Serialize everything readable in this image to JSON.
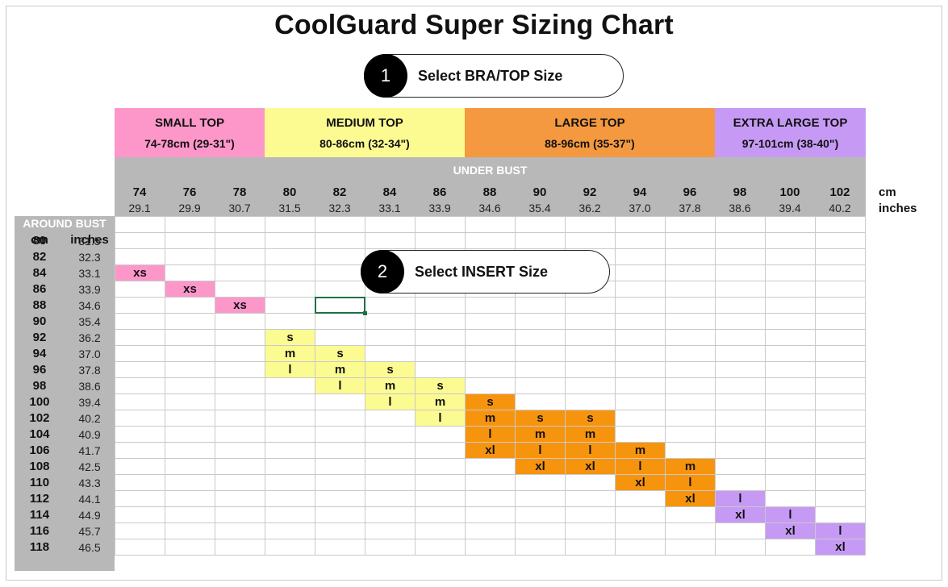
{
  "title": "CoolGuard Super Sizing Chart",
  "steps": [
    {
      "number": "1",
      "label": "Select BRA/TOP Size"
    },
    {
      "number": "2",
      "label": "Select INSERT Size"
    }
  ],
  "top_groups": [
    {
      "name": "SMALL TOP",
      "range": "74-78cm (29-31\")",
      "color": "#fd97c9",
      "span": 3
    },
    {
      "name": "MEDIUM TOP",
      "range": "80-86cm (32-34\")",
      "color": "#fbfb92",
      "span": 4
    },
    {
      "name": "LARGE TOP",
      "range": "88-96cm (35-37\")",
      "color": "#f49940",
      "span": 5
    },
    {
      "name": "EXTRA LARGE TOP",
      "range": "97-101cm (38-40\")",
      "color": "#c69af4",
      "span": 3
    }
  ],
  "under_bust": {
    "label": "UNDER BUST",
    "unit_cm": "cm",
    "unit_in": "inches",
    "cm": [
      "74",
      "76",
      "78",
      "80",
      "82",
      "84",
      "86",
      "88",
      "90",
      "92",
      "94",
      "96",
      "98",
      "100",
      "102"
    ],
    "inches": [
      "29.1",
      "29.9",
      "30.7",
      "31.5",
      "32.3",
      "33.1",
      "33.9",
      "34.6",
      "35.4",
      "36.2",
      "37.0",
      "37.8",
      "38.6",
      "39.4",
      "40.2"
    ]
  },
  "around_bust": {
    "label": "AROUND BUST",
    "cm_header": "cm",
    "in_header": "inches",
    "cm": [
      "80",
      "82",
      "84",
      "86",
      "88",
      "90",
      "92",
      "94",
      "96",
      "98",
      "100",
      "102",
      "104",
      "106",
      "108",
      "110",
      "112",
      "114",
      "116",
      "118"
    ],
    "inches": [
      "31.5",
      "32.3",
      "33.1",
      "33.9",
      "34.6",
      "35.4",
      "36.2",
      "37.0",
      "37.8",
      "38.6",
      "39.4",
      "40.2",
      "40.9",
      "41.7",
      "42.5",
      "43.3",
      "44.1",
      "44.9",
      "45.7",
      "46.5"
    ]
  },
  "cell_colors": {
    "pink": "#fd97c9",
    "yellow": "#fbfb92",
    "orange": "#f7940e",
    "purple": "#c69af4"
  },
  "size_cells": [
    {
      "row": 2,
      "col": 0,
      "text": "xs",
      "color": "pink"
    },
    {
      "row": 3,
      "col": 1,
      "text": "xs",
      "color": "pink"
    },
    {
      "row": 4,
      "col": 2,
      "text": "xs",
      "color": "pink"
    },
    {
      "row": 6,
      "col": 3,
      "text": "s",
      "color": "yellow"
    },
    {
      "row": 7,
      "col": 3,
      "text": "m",
      "color": "yellow"
    },
    {
      "row": 8,
      "col": 3,
      "text": "l",
      "color": "yellow"
    },
    {
      "row": 7,
      "col": 4,
      "text": "s",
      "color": "yellow"
    },
    {
      "row": 8,
      "col": 4,
      "text": "m",
      "color": "yellow"
    },
    {
      "row": 9,
      "col": 4,
      "text": "l",
      "color": "yellow"
    },
    {
      "row": 8,
      "col": 5,
      "text": "s",
      "color": "yellow"
    },
    {
      "row": 9,
      "col": 5,
      "text": "m",
      "color": "yellow"
    },
    {
      "row": 10,
      "col": 5,
      "text": "l",
      "color": "yellow"
    },
    {
      "row": 9,
      "col": 6,
      "text": "s",
      "color": "yellow"
    },
    {
      "row": 10,
      "col": 6,
      "text": "m",
      "color": "yellow"
    },
    {
      "row": 11,
      "col": 6,
      "text": "l",
      "color": "yellow"
    },
    {
      "row": 10,
      "col": 7,
      "text": "s",
      "color": "orange"
    },
    {
      "row": 11,
      "col": 7,
      "text": "m",
      "color": "orange"
    },
    {
      "row": 12,
      "col": 7,
      "text": "l",
      "color": "orange"
    },
    {
      "row": 13,
      "col": 7,
      "text": "xl",
      "color": "orange"
    },
    {
      "row": 11,
      "col": 8,
      "text": "s",
      "color": "orange"
    },
    {
      "row": 12,
      "col": 8,
      "text": "m",
      "color": "orange"
    },
    {
      "row": 13,
      "col": 8,
      "text": "l",
      "color": "orange"
    },
    {
      "row": 14,
      "col": 8,
      "text": "xl",
      "color": "orange"
    },
    {
      "row": 11,
      "col": 9,
      "text": "s",
      "color": "orange"
    },
    {
      "row": 12,
      "col": 9,
      "text": "m",
      "color": "orange"
    },
    {
      "row": 13,
      "col": 9,
      "text": "l",
      "color": "orange"
    },
    {
      "row": 14,
      "col": 9,
      "text": "xl",
      "color": "orange"
    },
    {
      "row": 13,
      "col": 10,
      "text": "m",
      "color": "orange"
    },
    {
      "row": 14,
      "col": 10,
      "text": "l",
      "color": "orange"
    },
    {
      "row": 15,
      "col": 10,
      "text": "xl",
      "color": "orange"
    },
    {
      "row": 14,
      "col": 11,
      "text": "m",
      "color": "orange"
    },
    {
      "row": 15,
      "col": 11,
      "text": "l",
      "color": "orange"
    },
    {
      "row": 16,
      "col": 11,
      "text": "xl",
      "color": "orange"
    },
    {
      "row": 16,
      "col": 12,
      "text": "l",
      "color": "purple"
    },
    {
      "row": 17,
      "col": 12,
      "text": "xl",
      "color": "purple"
    },
    {
      "row": 17,
      "col": 13,
      "text": "l",
      "color": "purple"
    },
    {
      "row": 18,
      "col": 13,
      "text": "xl",
      "color": "purple"
    },
    {
      "row": 18,
      "col": 14,
      "text": "l",
      "color": "purple"
    },
    {
      "row": 19,
      "col": 14,
      "text": "xl",
      "color": "purple"
    }
  ]
}
